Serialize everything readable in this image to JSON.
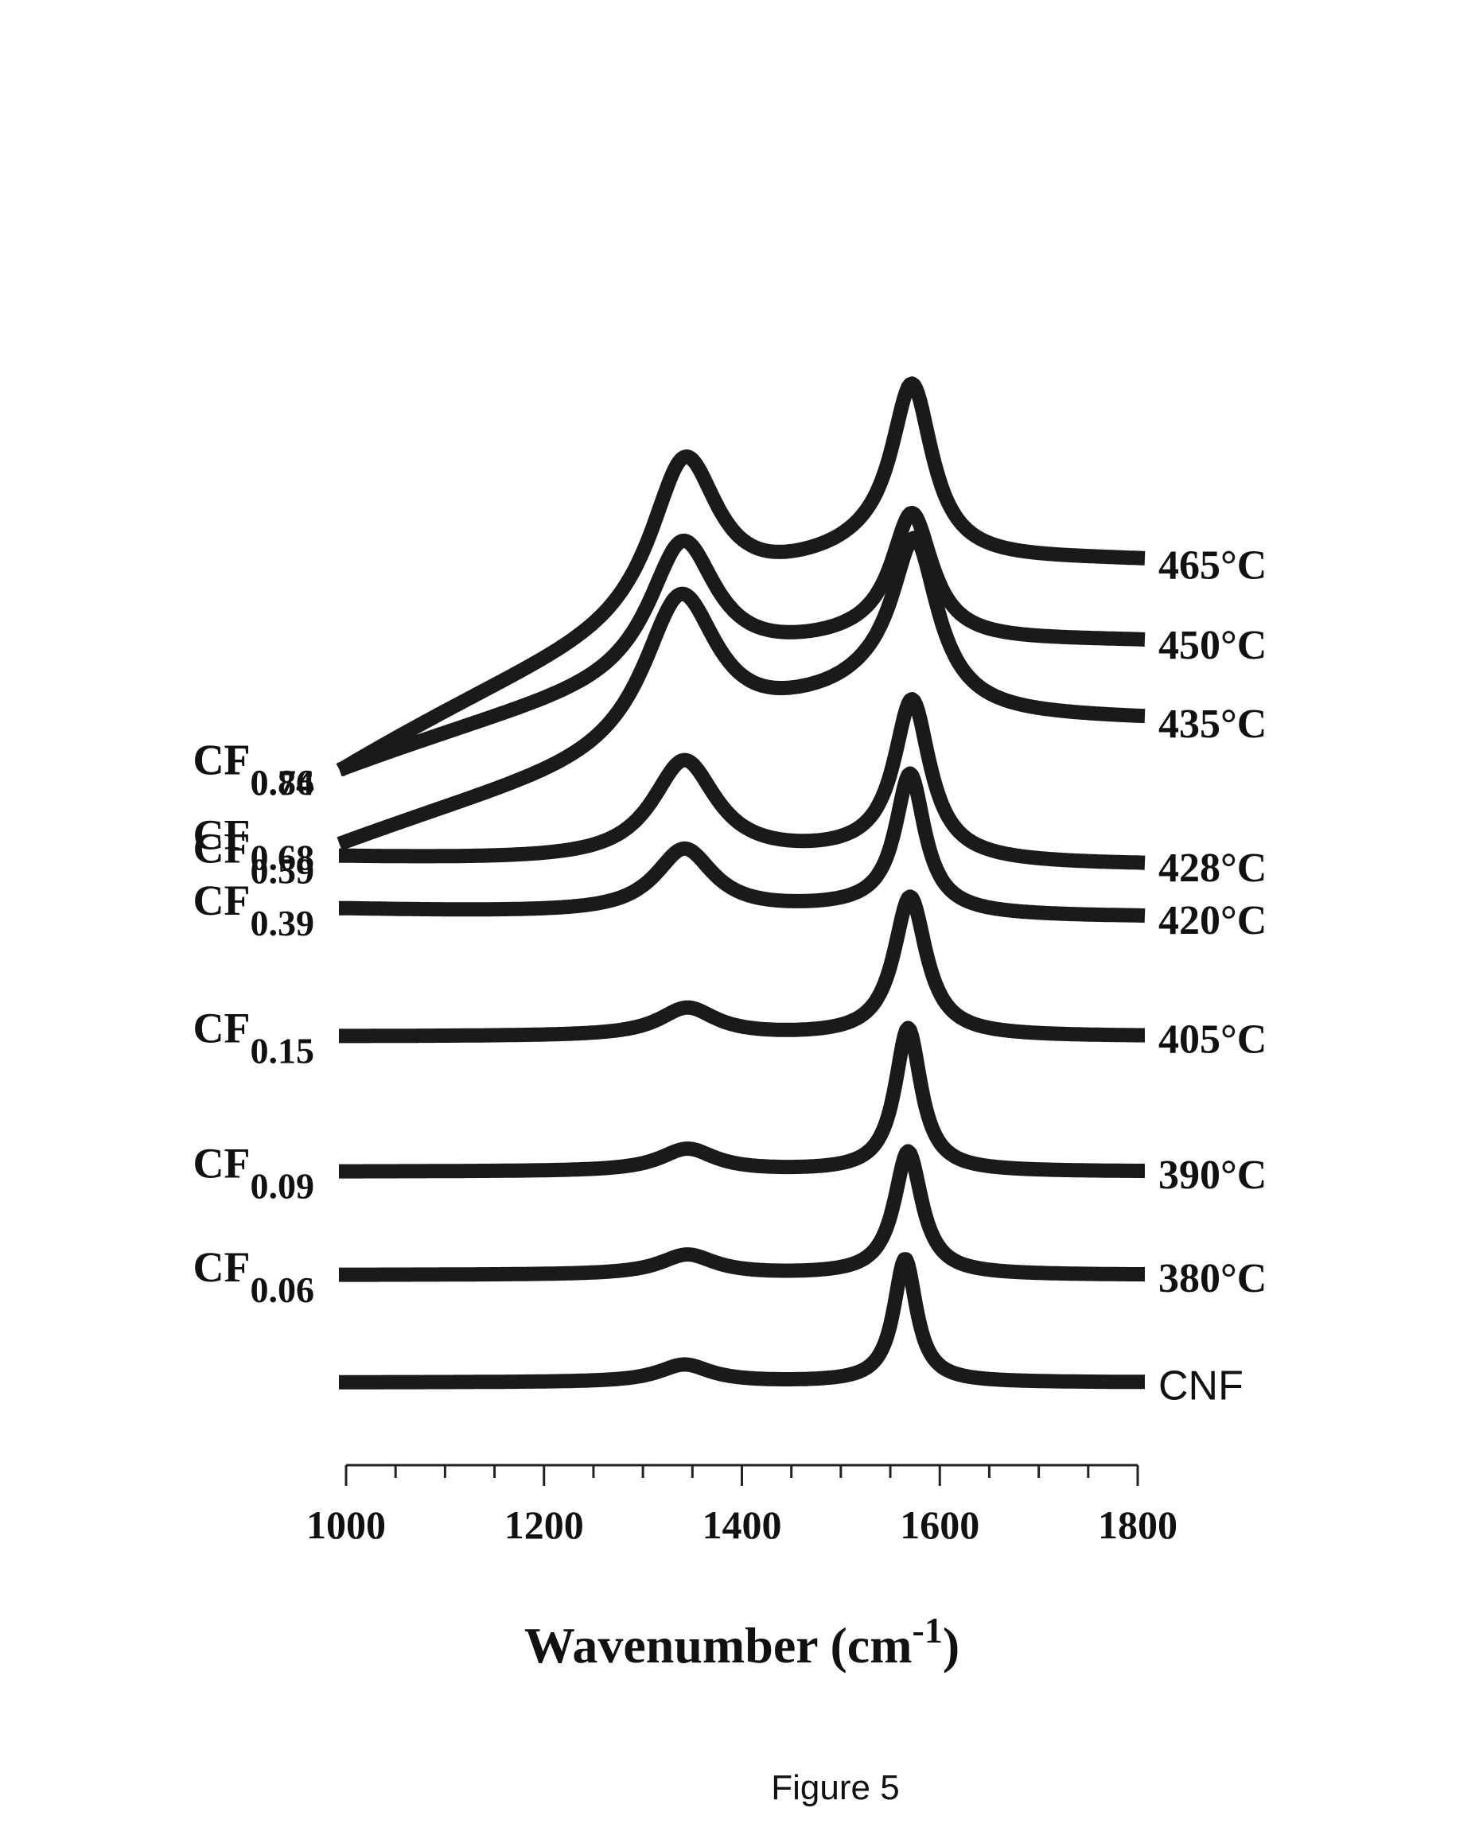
{
  "figure_caption": "Figure 5",
  "chart_data": {
    "type": "line",
    "title": "",
    "xlabel": "Wavenumber (cm-1)",
    "xlabel_main": "Wavenumber (cm",
    "xlabel_sup": "-1",
    "xlabel_close": ")",
    "ylabel": "",
    "xlim": [
      1000,
      1800
    ],
    "x_ticks": [
      1000,
      1200,
      1400,
      1600,
      1800
    ],
    "x_tick_labels": [
      "1000",
      "1200",
      "1400",
      "1600",
      "1800"
    ],
    "grid": false,
    "line_color": "#1a1a1a",
    "series": [
      {
        "name": "CNF",
        "composition": "",
        "baseline": 0,
        "d_band": {
          "center": 1342,
          "height": 0.22,
          "width": 32
        },
        "g_band": {
          "center": 1565,
          "height": 1.55,
          "width": 14
        },
        "background": {
          "left": 0,
          "right": 0
        },
        "shoulder": 0
      },
      {
        "name": "380°C",
        "composition": {
          "base": "CF",
          "sub": "0.06"
        },
        "baseline": 1.35,
        "d_band": {
          "center": 1345,
          "height": 0.25,
          "width": 34
        },
        "g_band": {
          "center": 1568,
          "height": 1.55,
          "width": 17
        },
        "background": {
          "left": 0,
          "right": 0
        },
        "shoulder": 0
      },
      {
        "name": "390°C",
        "composition": {
          "base": "CF",
          "sub": "0.09"
        },
        "baseline": 2.65,
        "d_band": {
          "center": 1345,
          "height": 0.28,
          "width": 34
        },
        "g_band": {
          "center": 1568,
          "height": 1.8,
          "width": 16
        },
        "background": {
          "left": 0,
          "right": 0
        },
        "shoulder": 0
      },
      {
        "name": "405°C",
        "composition": {
          "base": "CF",
          "sub": "0.15"
        },
        "baseline": 4.35,
        "d_band": {
          "center": 1345,
          "height": 0.35,
          "width": 35
        },
        "g_band": {
          "center": 1570,
          "height": 1.75,
          "width": 20
        },
        "background": {
          "left": 0,
          "right": 0
        },
        "shoulder": 0
      },
      {
        "name": "420°C",
        "composition": {
          "base": "CF",
          "sub": "0.39"
        },
        "baseline": 5.85,
        "d_band": {
          "center": 1342,
          "height": 0.8,
          "width": 36
        },
        "g_band": {
          "center": 1570,
          "height": 1.7,
          "width": 18
        },
        "background": {
          "left": 0.1,
          "right": 0
        },
        "shoulder": 0.12
      },
      {
        "name": "428°C",
        "composition": {
          "base": "CF",
          "sub": "0.59"
        },
        "baseline": 6.5,
        "d_band": {
          "center": 1342,
          "height": 1.25,
          "width": 40
        },
        "g_band": {
          "center": 1572,
          "height": 1.95,
          "width": 22
        },
        "background": {
          "left": 0.1,
          "right": 0
        },
        "shoulder": 0.15
      },
      {
        "name": "435°C",
        "composition": {
          "base": "CF",
          "sub": "0.68"
        },
        "baseline": 8.3,
        "d_band": {
          "center": 1338,
          "height": 1.95,
          "width": 46
        },
        "g_band": {
          "center": 1575,
          "height": 2.0,
          "width": 28
        },
        "background": {
          "left": -1.55,
          "right": 0
        },
        "shoulder": 0.55
      },
      {
        "name": "450°C",
        "composition": {
          "base": "CF",
          "sub": "0.74"
        },
        "baseline": 9.3,
        "d_band": {
          "center": 1340,
          "height": 1.7,
          "width": 42
        },
        "g_band": {
          "center": 1572,
          "height": 1.55,
          "width": 25
        },
        "background": {
          "left": -1.6,
          "right": 0
        },
        "shoulder": 0.2
      },
      {
        "name": "465°C",
        "composition": {
          "base": "CF",
          "sub": "0.86"
        },
        "baseline": 10.3,
        "d_band": {
          "center": 1342,
          "height": 2.0,
          "width": 42
        },
        "g_band": {
          "center": 1572,
          "height": 2.1,
          "width": 25
        },
        "background": {
          "left": -2.6,
          "right": 0
        },
        "shoulder": 0.4
      }
    ]
  }
}
